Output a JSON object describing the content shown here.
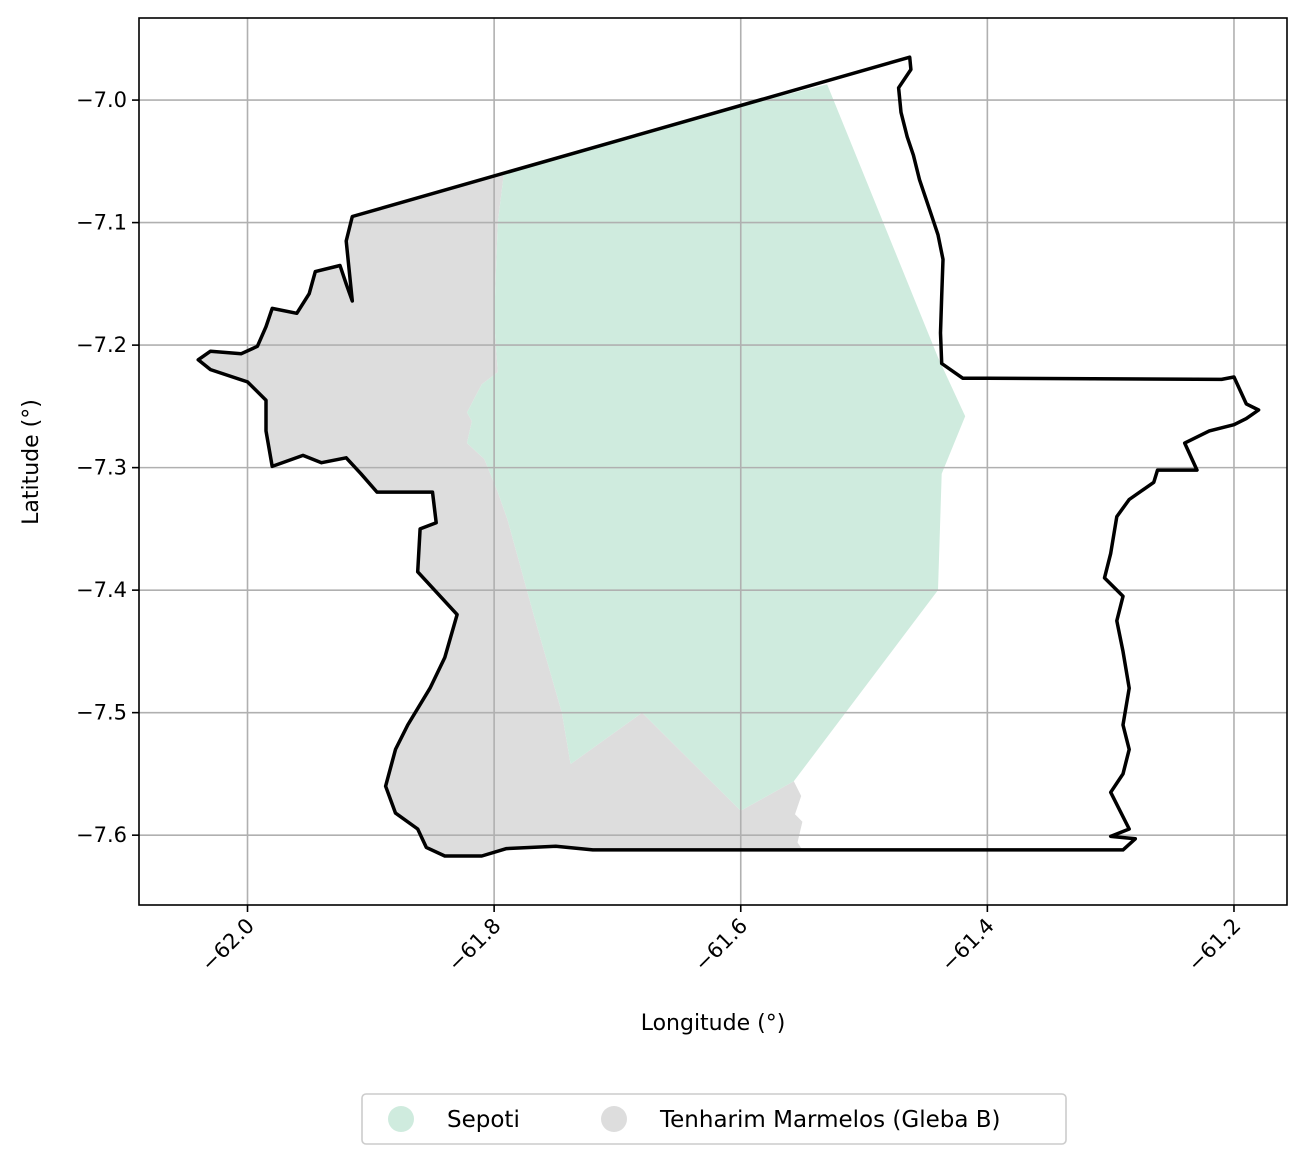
{
  "chart_data": {
    "type": "map",
    "xlabel": "Longitude (°)",
    "ylabel": "Latitude (°)",
    "xlim": [
      -62.088,
      -61.157
    ],
    "ylim": [
      -7.657,
      -6.933
    ],
    "x_ticks": [
      {
        "value": -62.0,
        "label": "−62.0"
      },
      {
        "value": -61.8,
        "label": "−61.8"
      },
      {
        "value": -61.6,
        "label": "−61.6"
      },
      {
        "value": -61.4,
        "label": "−61.4"
      },
      {
        "value": -61.2,
        "label": "−61.2"
      }
    ],
    "y_ticks": [
      {
        "value": -7.0,
        "label": "−7.0"
      },
      {
        "value": -7.1,
        "label": "−7.1"
      },
      {
        "value": -7.2,
        "label": "−7.2"
      },
      {
        "value": -7.3,
        "label": "−7.3"
      },
      {
        "value": -7.4,
        "label": "−7.4"
      },
      {
        "value": -7.5,
        "label": "−7.5"
      },
      {
        "value": -7.6,
        "label": "−7.6"
      }
    ],
    "grid": true,
    "legend_placement": "bottom-center",
    "series": [
      {
        "name": "Tenharim Marmelos (Gleba B)",
        "color": "#dddddd",
        "polygon": [
          [
            -61.792,
            -7.059
          ],
          [
            -61.797,
            -7.1
          ],
          [
            -61.8,
            -7.18
          ],
          [
            -61.797,
            -7.222
          ],
          [
            -61.81,
            -7.232
          ],
          [
            -61.822,
            -7.255
          ],
          [
            -61.818,
            -7.262
          ],
          [
            -61.822,
            -7.28
          ],
          [
            -61.808,
            -7.293
          ],
          [
            -61.797,
            -7.32
          ],
          [
            -61.789,
            -7.343
          ],
          [
            -61.768,
            -7.42
          ],
          [
            -61.745,
            -7.5
          ],
          [
            -61.738,
            -7.542
          ],
          [
            -61.68,
            -7.5
          ],
          [
            -61.6,
            -7.58
          ],
          [
            -61.557,
            -7.556
          ],
          [
            -61.551,
            -7.568
          ],
          [
            -61.556,
            -7.583
          ],
          [
            -61.55,
            -7.589
          ],
          [
            -61.554,
            -7.606
          ],
          [
            -61.55,
            -7.612
          ],
          [
            -61.59,
            -7.612
          ],
          [
            -61.72,
            -7.612
          ],
          [
            -61.75,
            -7.609
          ],
          [
            -61.79,
            -7.611
          ],
          [
            -61.81,
            -7.617
          ],
          [
            -61.84,
            -7.617
          ],
          [
            -61.855,
            -7.61
          ],
          [
            -61.862,
            -7.595
          ],
          [
            -61.88,
            -7.582
          ],
          [
            -61.888,
            -7.56
          ],
          [
            -61.88,
            -7.53
          ],
          [
            -61.87,
            -7.51
          ],
          [
            -61.852,
            -7.48
          ],
          [
            -61.84,
            -7.455
          ],
          [
            -61.83,
            -7.42
          ],
          [
            -61.862,
            -7.385
          ],
          [
            -61.86,
            -7.35
          ],
          [
            -61.847,
            -7.345
          ],
          [
            -61.85,
            -7.32
          ],
          [
            -61.895,
            -7.32
          ],
          [
            -61.908,
            -7.305
          ],
          [
            -61.92,
            -7.292
          ],
          [
            -61.94,
            -7.296
          ],
          [
            -61.955,
            -7.29
          ],
          [
            -61.98,
            -7.299
          ],
          [
            -61.985,
            -7.27
          ],
          [
            -61.985,
            -7.245
          ],
          [
            -62.0,
            -7.23
          ],
          [
            -62.03,
            -7.22
          ],
          [
            -62.04,
            -7.212
          ],
          [
            -62.03,
            -7.205
          ],
          [
            -62.005,
            -7.207
          ],
          [
            -61.992,
            -7.201
          ],
          [
            -61.985,
            -7.185
          ],
          [
            -61.98,
            -7.17
          ],
          [
            -61.96,
            -7.174
          ],
          [
            -61.95,
            -7.158
          ],
          [
            -61.945,
            -7.14
          ],
          [
            -61.925,
            -7.135
          ],
          [
            -61.92,
            -7.15
          ],
          [
            -61.915,
            -7.164
          ],
          [
            -61.92,
            -7.115
          ],
          [
            -61.915,
            -7.095
          ],
          [
            -61.8,
            -7.062
          ]
        ]
      },
      {
        "name": "Sepoti",
        "color": "#cfebde",
        "polygon": [
          [
            -61.53,
            -6.987
          ],
          [
            -61.6,
            -7.005
          ],
          [
            -61.792,
            -7.059
          ],
          [
            -61.797,
            -7.1
          ],
          [
            -61.8,
            -7.18
          ],
          [
            -61.797,
            -7.222
          ],
          [
            -61.81,
            -7.232
          ],
          [
            -61.822,
            -7.255
          ],
          [
            -61.818,
            -7.262
          ],
          [
            -61.822,
            -7.28
          ],
          [
            -61.808,
            -7.293
          ],
          [
            -61.797,
            -7.32
          ],
          [
            -61.789,
            -7.343
          ],
          [
            -61.768,
            -7.42
          ],
          [
            -61.745,
            -7.5
          ],
          [
            -61.738,
            -7.542
          ],
          [
            -61.68,
            -7.5
          ],
          [
            -61.6,
            -7.58
          ],
          [
            -61.557,
            -7.556
          ],
          [
            -61.44,
            -7.4
          ],
          [
            -61.437,
            -7.305
          ],
          [
            -61.418,
            -7.258
          ],
          [
            -61.44,
            -7.21
          ],
          [
            -61.53,
            -6.987
          ]
        ]
      }
    ],
    "boundary": {
      "color": "#000000",
      "polygon": [
        [
          -61.463,
          -6.965
        ],
        [
          -61.462,
          -6.975
        ],
        [
          -61.472,
          -6.99
        ],
        [
          -61.47,
          -7.01
        ],
        [
          -61.465,
          -7.03
        ],
        [
          -61.46,
          -7.045
        ],
        [
          -61.455,
          -7.065
        ],
        [
          -61.45,
          -7.08
        ],
        [
          -61.445,
          -7.095
        ],
        [
          -61.44,
          -7.11
        ],
        [
          -61.436,
          -7.13
        ],
        [
          -61.437,
          -7.16
        ],
        [
          -61.438,
          -7.19
        ],
        [
          -61.437,
          -7.215
        ],
        [
          -61.42,
          -7.227
        ],
        [
          -61.4,
          -7.227
        ],
        [
          -61.21,
          -7.228
        ],
        [
          -61.2,
          -7.226
        ],
        [
          -61.19,
          -7.248
        ],
        [
          -61.18,
          -7.253
        ],
        [
          -61.19,
          -7.26
        ],
        [
          -61.2,
          -7.265
        ],
        [
          -61.22,
          -7.27
        ],
        [
          -61.24,
          -7.28
        ],
        [
          -61.23,
          -7.302
        ],
        [
          -61.262,
          -7.302
        ],
        [
          -61.265,
          -7.312
        ],
        [
          -61.285,
          -7.326
        ],
        [
          -61.295,
          -7.34
        ],
        [
          -61.3,
          -7.37
        ],
        [
          -61.305,
          -7.39
        ],
        [
          -61.29,
          -7.405
        ],
        [
          -61.295,
          -7.425
        ],
        [
          -61.29,
          -7.45
        ],
        [
          -61.285,
          -7.48
        ],
        [
          -61.29,
          -7.51
        ],
        [
          -61.285,
          -7.53
        ],
        [
          -61.29,
          -7.55
        ],
        [
          -61.3,
          -7.565
        ],
        [
          -61.285,
          -7.595
        ],
        [
          -61.3,
          -7.601
        ],
        [
          -61.28,
          -7.603
        ],
        [
          -61.29,
          -7.612
        ],
        [
          -61.45,
          -7.612
        ],
        [
          -61.72,
          -7.612
        ],
        [
          -61.75,
          -7.609
        ],
        [
          -61.79,
          -7.611
        ],
        [
          -61.81,
          -7.617
        ],
        [
          -61.84,
          -7.617
        ],
        [
          -61.855,
          -7.61
        ],
        [
          -61.862,
          -7.595
        ],
        [
          -61.88,
          -7.582
        ],
        [
          -61.888,
          -7.56
        ],
        [
          -61.88,
          -7.53
        ],
        [
          -61.87,
          -7.51
        ],
        [
          -61.852,
          -7.48
        ],
        [
          -61.84,
          -7.455
        ],
        [
          -61.83,
          -7.42
        ],
        [
          -61.862,
          -7.385
        ],
        [
          -61.86,
          -7.35
        ],
        [
          -61.847,
          -7.345
        ],
        [
          -61.85,
          -7.32
        ],
        [
          -61.895,
          -7.32
        ],
        [
          -61.908,
          -7.305
        ],
        [
          -61.92,
          -7.292
        ],
        [
          -61.94,
          -7.296
        ],
        [
          -61.955,
          -7.29
        ],
        [
          -61.98,
          -7.299
        ],
        [
          -61.985,
          -7.27
        ],
        [
          -61.985,
          -7.245
        ],
        [
          -62.0,
          -7.23
        ],
        [
          -62.03,
          -7.22
        ],
        [
          -62.04,
          -7.212
        ],
        [
          -62.03,
          -7.205
        ],
        [
          -62.005,
          -7.207
        ],
        [
          -61.992,
          -7.201
        ],
        [
          -61.985,
          -7.185
        ],
        [
          -61.98,
          -7.17
        ],
        [
          -61.96,
          -7.174
        ],
        [
          -61.95,
          -7.158
        ],
        [
          -61.945,
          -7.14
        ],
        [
          -61.925,
          -7.135
        ],
        [
          -61.92,
          -7.15
        ],
        [
          -61.915,
          -7.164
        ],
        [
          -61.92,
          -7.115
        ],
        [
          -61.915,
          -7.095
        ],
        [
          -61.463,
          -6.965
        ]
      ]
    }
  }
}
